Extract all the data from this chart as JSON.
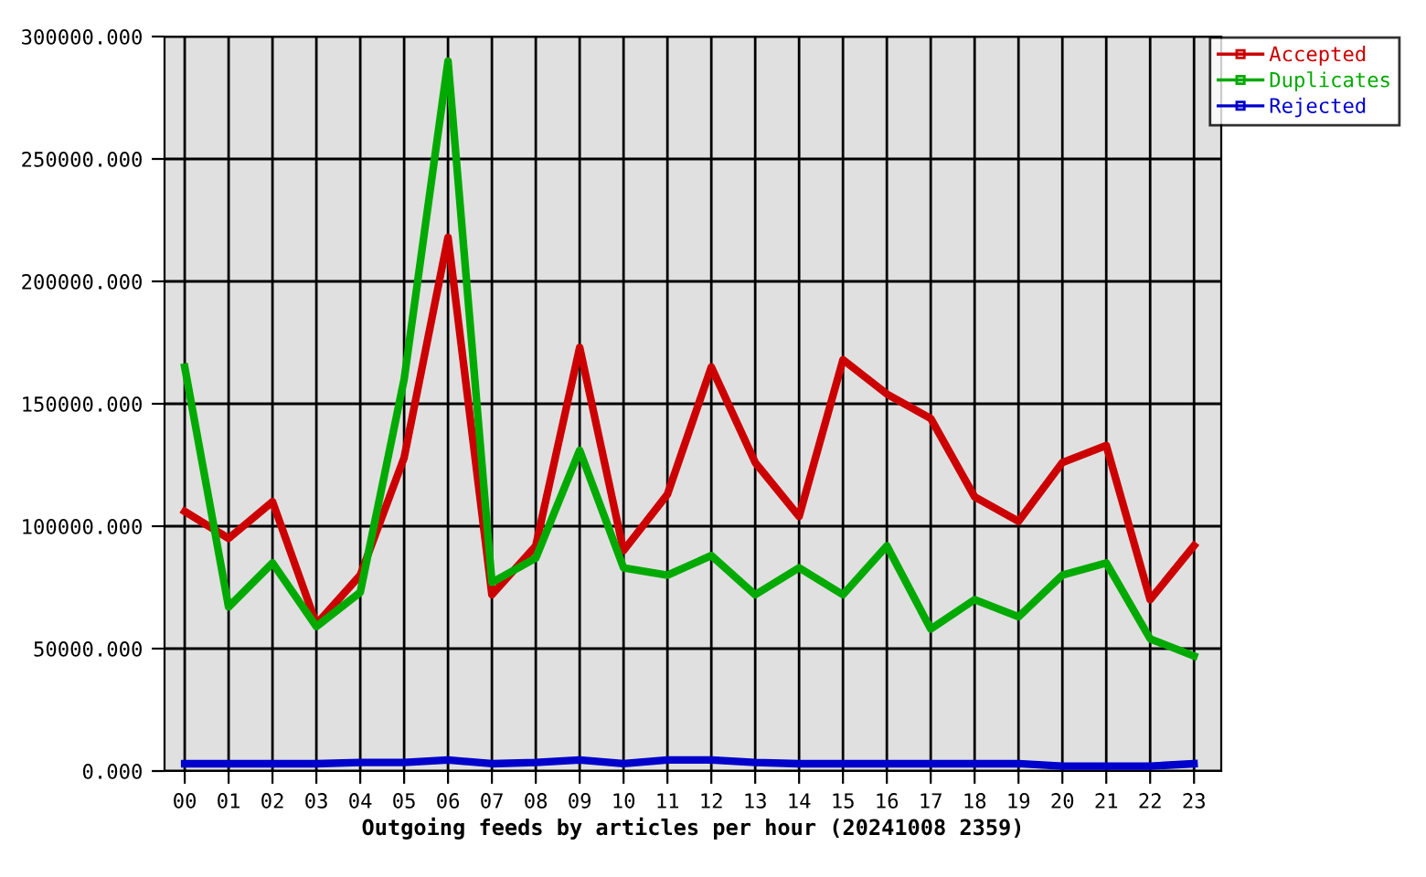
{
  "chart_data": {
    "type": "line",
    "xlabel": "Outgoing feeds by articles per hour (20241008 2359)",
    "categories": [
      "00",
      "01",
      "02",
      "03",
      "04",
      "05",
      "06",
      "07",
      "08",
      "09",
      "10",
      "11",
      "12",
      "13",
      "14",
      "15",
      "16",
      "17",
      "18",
      "19",
      "20",
      "21",
      "22",
      "23"
    ],
    "series": [
      {
        "name": "Accepted",
        "color": "#cc0000",
        "values": [
          106000,
          95000,
          110000,
          60000,
          80000,
          128000,
          218000,
          72000,
          92000,
          173000,
          90000,
          113000,
          165000,
          126000,
          104000,
          168000,
          154000,
          144000,
          112000,
          102000,
          126000,
          133000,
          70000,
          92000
        ]
      },
      {
        "name": "Duplicates",
        "color": "#00aa00",
        "values": [
          165000,
          67000,
          85000,
          59000,
          73000,
          160000,
          290000,
          77000,
          87000,
          131000,
          83000,
          80000,
          88000,
          72000,
          83000,
          72000,
          92000,
          58000,
          70000,
          63000,
          80000,
          85000,
          54000,
          47000
        ]
      },
      {
        "name": "Rejected",
        "color": "#0000cc",
        "values": [
          3000,
          3000,
          3000,
          3000,
          3500,
          3500,
          4500,
          3000,
          3500,
          4500,
          3000,
          4500,
          4500,
          3500,
          3000,
          3000,
          3000,
          3000,
          3000,
          3000,
          2000,
          2000,
          2000,
          3000
        ]
      }
    ],
    "ylim": [
      0,
      300000
    ],
    "yticks": [
      {
        "value": 0,
        "label": "0.000"
      },
      {
        "value": 50000,
        "label": "50000.000"
      },
      {
        "value": 100000,
        "label": "100000.000"
      },
      {
        "value": 150000,
        "label": "150000.000"
      },
      {
        "value": 200000,
        "label": "200000.000"
      },
      {
        "value": 250000,
        "label": "250000.000"
      },
      {
        "value": 300000,
        "label": "300000.000"
      }
    ],
    "grid": true,
    "legend": "top right",
    "line_style": "solid"
  }
}
